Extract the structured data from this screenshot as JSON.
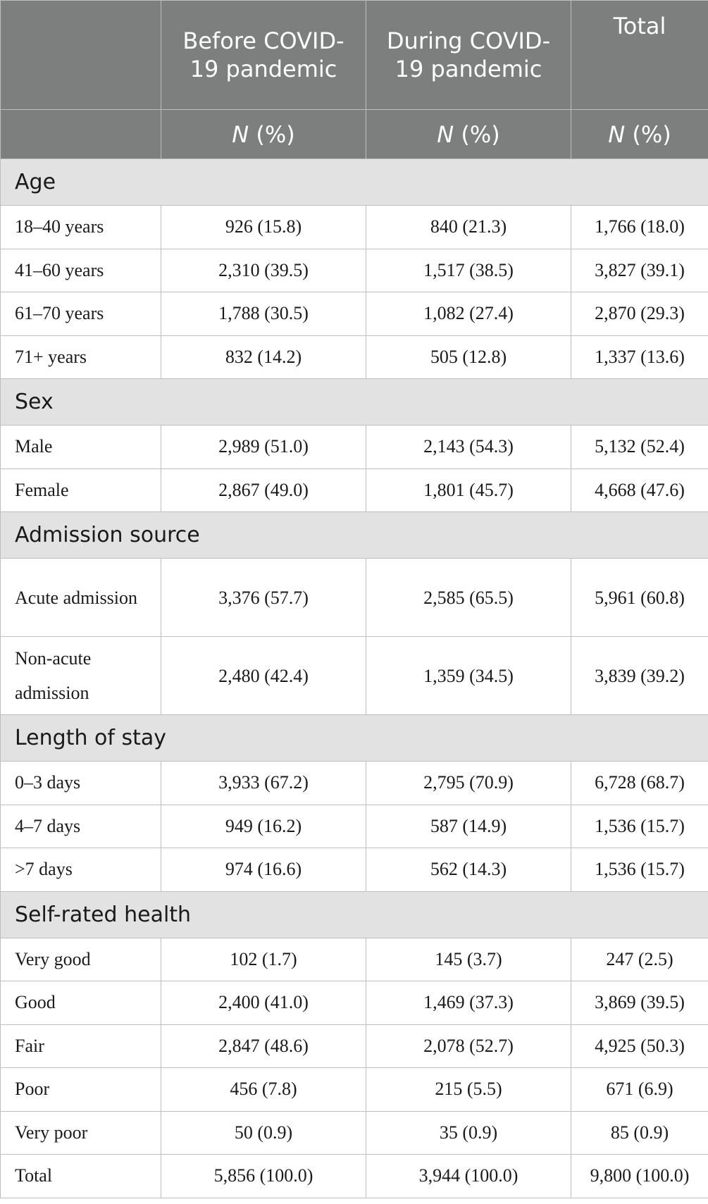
{
  "header": {
    "columns": [
      "",
      "Before COVID-19 pandemic",
      "During COVID-19 pandemic",
      "Total"
    ],
    "subheader": [
      "",
      "N (%)",
      "N (%)",
      "N (%)"
    ]
  },
  "sections": [
    {
      "title": "Age",
      "rows": [
        {
          "label": "18–40 years",
          "values": [
            "926 (15.8)",
            "840 (21.3)",
            "1,766 (18.0)"
          ]
        },
        {
          "label": "41–60 years",
          "values": [
            "2,310 (39.5)",
            "1,517 (38.5)",
            "3,827 (39.1)"
          ]
        },
        {
          "label": "61–70 years",
          "values": [
            "1,788 (30.5)",
            "1,082 (27.4)",
            "2,870 (29.3)"
          ]
        },
        {
          "label": "71+ years",
          "values": [
            "832 (14.2)",
            "505 (12.8)",
            "1,337 (13.6)"
          ]
        }
      ]
    },
    {
      "title": "Sex",
      "rows": [
        {
          "label": "Male",
          "values": [
            "2,989 (51.0)",
            "2,143 (54.3)",
            "5,132 (52.4)"
          ]
        },
        {
          "label": "Female",
          "values": [
            "2,867 (49.0)",
            "1,801 (45.7)",
            "4,668 (47.6)"
          ]
        }
      ]
    },
    {
      "title": "Admission source",
      "rows": [
        {
          "label": "Acute admission",
          "values": [
            "3,376 (57.7)",
            "2,585 (65.5)",
            "5,961 (60.8)"
          ]
        },
        {
          "label": "Non-acute admission",
          "values": [
            "2,480 (42.4)",
            "1,359 (34.5)",
            "3,839 (39.2)"
          ]
        }
      ]
    },
    {
      "title": "Length of stay",
      "rows": [
        {
          "label": "0–3 days",
          "values": [
            "3,933 (67.2)",
            "2,795 (70.9)",
            "6,728 (68.7)"
          ]
        },
        {
          "label": "4–7 days",
          "values": [
            "949 (16.2)",
            "587 (14.9)",
            "1,536 (15.7)"
          ]
        },
        {
          "label": ">7 days",
          "values": [
            "974 (16.6)",
            "562 (14.3)",
            "1,536 (15.7)"
          ]
        }
      ]
    },
    {
      "title": "Self-rated health",
      "rows": [
        {
          "label": "Very good",
          "values": [
            "102 (1.7)",
            "145 (3.7)",
            "247 (2.5)"
          ]
        },
        {
          "label": "Good",
          "values": [
            "2,400 (41.0)",
            "1,469 (37.3)",
            "3,869 (39.5)"
          ]
        },
        {
          "label": "Fair",
          "values": [
            "2,847 (48.6)",
            "2,078 (52.7)",
            "4,925 (50.3)"
          ]
        },
        {
          "label": "Poor",
          "values": [
            "456 (7.8)",
            "215 (5.5)",
            "671 (6.9)"
          ]
        },
        {
          "label": "Very poor",
          "values": [
            "50 (0.9)",
            "35 (0.9)",
            "85 (0.9)"
          ]
        }
      ]
    }
  ],
  "total_row": {
    "label": "Total",
    "values": [
      "5,856 (100.0)",
      "3,944 (100.0)",
      "9,800 (100.0)"
    ]
  }
}
